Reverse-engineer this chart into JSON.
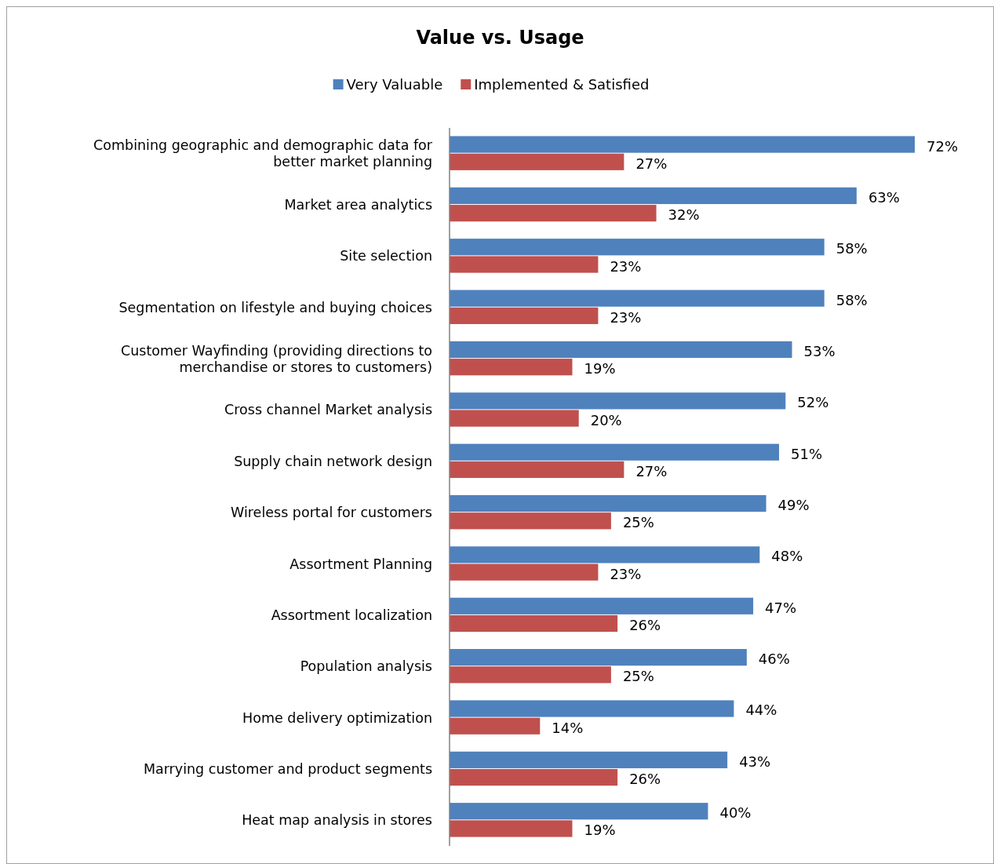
{
  "chart_data": {
    "type": "bar",
    "orientation": "horizontal",
    "title": "Value vs. Usage",
    "legend": "top",
    "categories": [
      "Combining geographic and demographic data for better market planning",
      "Market area analytics",
      "Site selection",
      "Segmentation on lifestyle and buying choices",
      "Customer Wayfinding (providing directions to merchandise or stores to customers)",
      "Cross channel Market analysis",
      "Supply chain network design",
      "Wireless portal for customers",
      "Assortment Planning",
      "Assortment localization",
      "Population analysis",
      "Home delivery optimization",
      "Marrying customer and product segments",
      "Heat map analysis in stores"
    ],
    "series": [
      {
        "name": "Very Valuable",
        "color": "#4f81bd",
        "values": [
          72,
          63,
          58,
          58,
          53,
          52,
          51,
          49,
          48,
          47,
          46,
          44,
          43,
          40
        ],
        "value_labels": [
          "72%",
          "63%",
          "58%",
          "58%",
          "53%",
          "52%",
          "51%",
          "49%",
          "48%",
          "47%",
          "46%",
          "44%",
          "43%",
          "40%"
        ]
      },
      {
        "name": "Implemented & Satisfied",
        "color": "#c0504d",
        "values": [
          27,
          32,
          23,
          23,
          19,
          20,
          27,
          25,
          23,
          26,
          25,
          14,
          26,
          19
        ],
        "value_labels": [
          "27%",
          "32%",
          "23%",
          "23%",
          "19%",
          "20%",
          "27%",
          "25%",
          "23%",
          "26%",
          "25%",
          "14%",
          "26%",
          "19%"
        ]
      }
    ]
  }
}
